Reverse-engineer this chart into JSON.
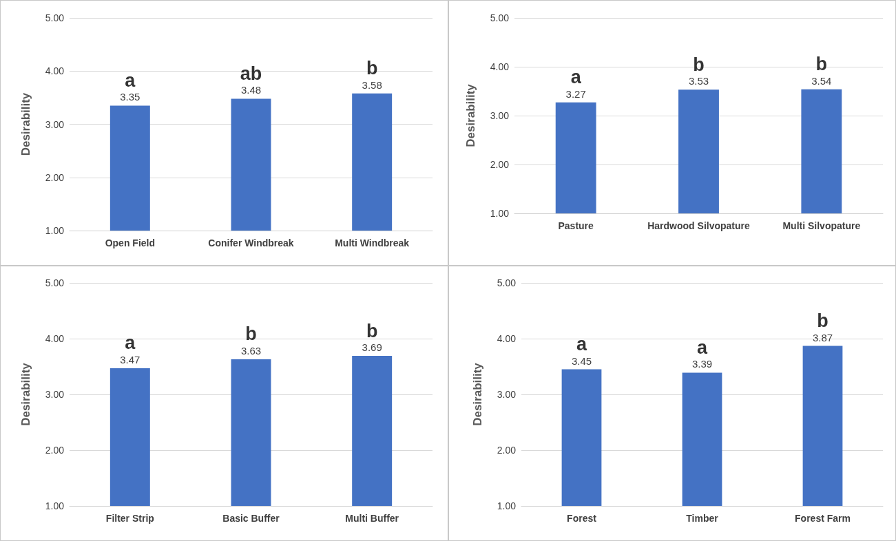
{
  "chart_data": [
    {
      "type": "bar",
      "ylabel": "Desirability",
      "categories": [
        "Open Field",
        "Conifer Windbreak",
        "Multi Windbreak"
      ],
      "values": [
        3.35,
        3.48,
        3.58
      ],
      "color": "#4472c4",
      "ylim": [
        1,
        5
      ],
      "yticks": [
        {
          "value": 1,
          "label": "1.00"
        },
        {
          "value": 2,
          "label": "2.00"
        },
        {
          "value": 3,
          "label": "3.00"
        },
        {
          "value": 4,
          "label": "4.00"
        },
        {
          "value": 5,
          "label": "5.00"
        }
      ],
      "grid": "y",
      "data_labels": true,
      "annotations": [
        {
          "text": "a",
          "x": "Open Field",
          "y": 3.35
        },
        {
          "text": "ab",
          "x": "Conifer Windbreak",
          "y": 3.48
        },
        {
          "text": "b",
          "x": "Multi Windbreak",
          "y": 3.58
        }
      ]
    },
    {
      "type": "bar",
      "ylabel": "Desirability",
      "categories": [
        "Pasture",
        "Hardwood Silvopature",
        "Multi Silvopature"
      ],
      "values": [
        3.27,
        3.53,
        3.54
      ],
      "color": "#4472c4",
      "ylim": [
        1,
        5
      ],
      "yticks": [
        {
          "value": 1,
          "label": "1.00"
        },
        {
          "value": 2,
          "label": "2.00"
        },
        {
          "value": 3,
          "label": "3.00"
        },
        {
          "value": 4,
          "label": "4.00"
        },
        {
          "value": 5,
          "label": "5.00"
        }
      ],
      "grid": "y",
      "data_labels": true,
      "annotations": [
        {
          "text": "a",
          "x": "Pasture",
          "y": 3.27
        },
        {
          "text": "b",
          "x": "Hardwood Silvopature",
          "y": 3.53
        },
        {
          "text": "b",
          "x": "Multi Silvopature",
          "y": 3.54
        }
      ]
    },
    {
      "type": "bar",
      "ylabel": "Desirability",
      "categories": [
        "Filter Strip",
        "Basic Buffer",
        "Multi Buffer"
      ],
      "values": [
        3.47,
        3.63,
        3.69
      ],
      "color": "#4472c4",
      "ylim": [
        1,
        5
      ],
      "yticks": [
        {
          "value": 1,
          "label": "1.00"
        },
        {
          "value": 2,
          "label": "2.00"
        },
        {
          "value": 3,
          "label": "3.00"
        },
        {
          "value": 4,
          "label": "4.00"
        },
        {
          "value": 5,
          "label": "5.00"
        }
      ],
      "grid": "y",
      "data_labels": true,
      "annotations": [
        {
          "text": "a",
          "x": "Filter Strip",
          "y": 3.47
        },
        {
          "text": "b",
          "x": "Basic Buffer",
          "y": 3.63
        },
        {
          "text": "b",
          "x": "Multi Buffer",
          "y": 3.69
        }
      ]
    },
    {
      "type": "bar",
      "ylabel": "Desirability",
      "categories": [
        "Forest",
        "Timber",
        "Forest Farm"
      ],
      "values": [
        3.45,
        3.39,
        3.87
      ],
      "color": "#4472c4",
      "ylim": [
        1,
        5
      ],
      "yticks": [
        {
          "value": 1,
          "label": "1.00"
        },
        {
          "value": 2,
          "label": "2.00"
        },
        {
          "value": 3,
          "label": "3.00"
        },
        {
          "value": 4,
          "label": "4.00"
        },
        {
          "value": 5,
          "label": "5.00"
        }
      ],
      "grid": "y",
      "data_labels": true,
      "annotations": [
        {
          "text": "a",
          "x": "Forest",
          "y": 3.45
        },
        {
          "text": "a",
          "x": "Timber",
          "y": 3.39
        },
        {
          "text": "b",
          "x": "Forest Farm",
          "y": 3.87
        }
      ]
    }
  ]
}
